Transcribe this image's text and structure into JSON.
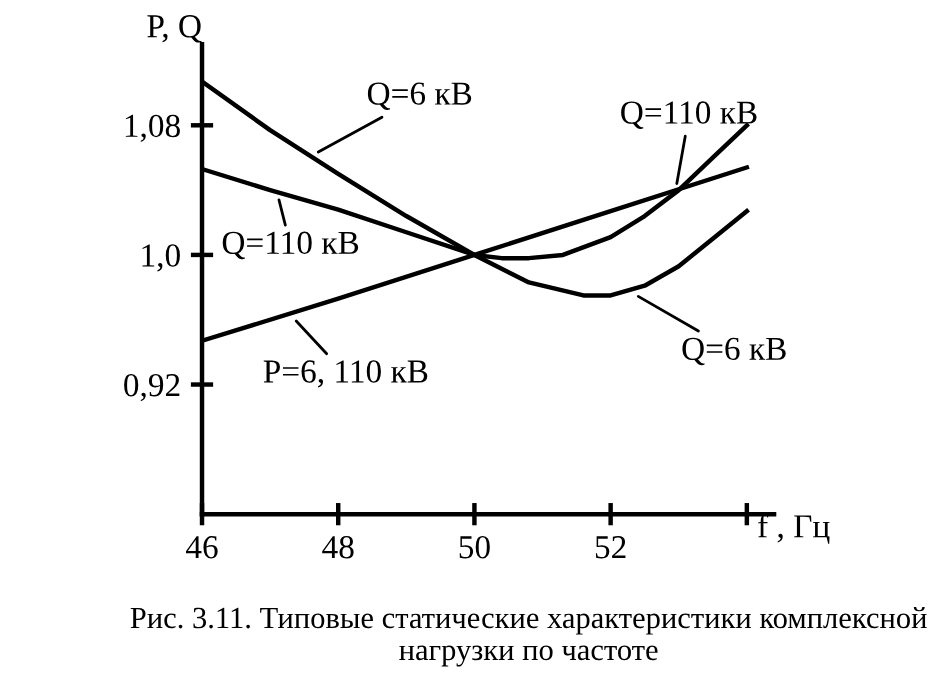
{
  "chart_data": {
    "type": "line",
    "xlabel": "f , Гц",
    "ylabel": "P, Q",
    "xlim": [
      46,
      54.4
    ],
    "ylim": [
      0.84,
      1.13
    ],
    "xticks": [
      46,
      48,
      50,
      52,
      {
        "value": 54,
        "label": null
      }
    ],
    "yticks": [
      {
        "value": 0.92,
        "label": "0,92"
      },
      {
        "value": 1.0,
        "label": "1,0"
      },
      {
        "value": 1.08,
        "label": "1,08"
      }
    ],
    "grid": false,
    "legend": false,
    "marker": "none",
    "line_style": "solid",
    "series": [
      {
        "color": "#000000",
        "x": [
          46,
          47,
          48,
          49,
          50,
          50.8,
          51.6,
          52,
          52.5,
          53,
          53.5,
          54
        ],
        "values": [
          1.107,
          1.077,
          1.05,
          1.024,
          1.0,
          0.983,
          0.975,
          0.975,
          0.981,
          0.993,
          1.01,
          1.027
        ]
      },
      {
        "color": "#000000",
        "x": [
          46,
          47,
          48,
          49,
          50,
          50.4,
          50.8,
          51.3,
          52,
          52.5,
          53,
          53.5,
          54
        ],
        "values": [
          1.053,
          1.04,
          1.028,
          1.014,
          1.0,
          0.998,
          0.998,
          1.0,
          1.011,
          1.024,
          1.04,
          1.06,
          1.08
        ]
      },
      {
        "color": "#000000",
        "x": [
          46,
          48,
          50,
          52,
          54
        ],
        "values": [
          0.947,
          0.973,
          1.0,
          1.027,
          1.054
        ]
      }
    ],
    "annotations": [
      {
        "text": "Q=6 кВ",
        "x": 47.6,
        "y": 1.061
      },
      {
        "text": "Q=110 кВ",
        "x": 47.1,
        "y": 1.039
      },
      {
        "text": "P=6, 110 кВ",
        "x": 47.3,
        "y": 0.963
      },
      {
        "text": "Q=110 кВ",
        "x": 52.95,
        "y": 1.039
      },
      {
        "text": "Q=6 кВ",
        "x": 52.3,
        "y": 0.977
      },
      "Рис. 3.11. Типовые статические характеристики комплексной нагрузки по частоте"
    ]
  }
}
